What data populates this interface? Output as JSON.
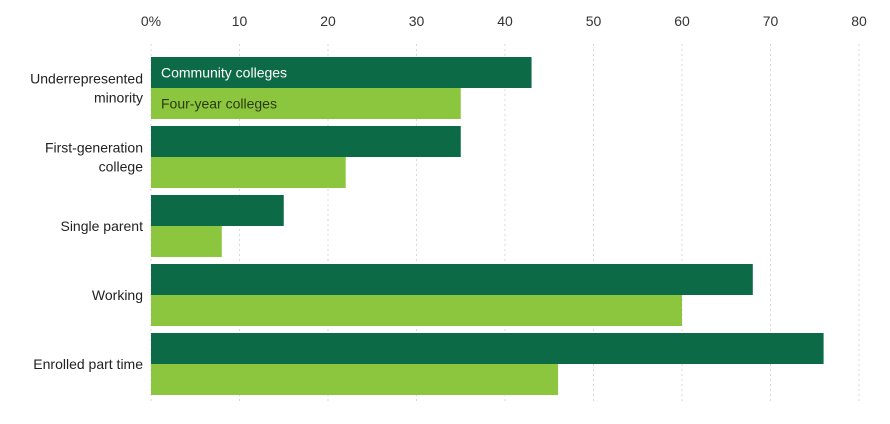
{
  "chart_data": {
    "type": "bar",
    "orientation": "horizontal",
    "categories": [
      [
        "Underrepresented",
        "minority"
      ],
      [
        "First-generation",
        "college"
      ],
      [
        "Single parent"
      ],
      [
        "Working"
      ],
      [
        "Enrolled part time"
      ]
    ],
    "series": [
      {
        "name": "Community colleges",
        "color": "#0d6a47",
        "values": [
          43,
          35,
          15,
          68,
          76
        ]
      },
      {
        "name": "Four-year colleges",
        "color": "#8cc63f",
        "values": [
          35,
          22,
          8,
          60,
          46
        ]
      }
    ],
    "x_ticks": [
      "0%",
      "10",
      "20",
      "30",
      "40",
      "50",
      "60",
      "70",
      "80"
    ],
    "xlim": [
      0,
      80
    ],
    "grid": true,
    "legend_placement": "inside first bar group"
  }
}
